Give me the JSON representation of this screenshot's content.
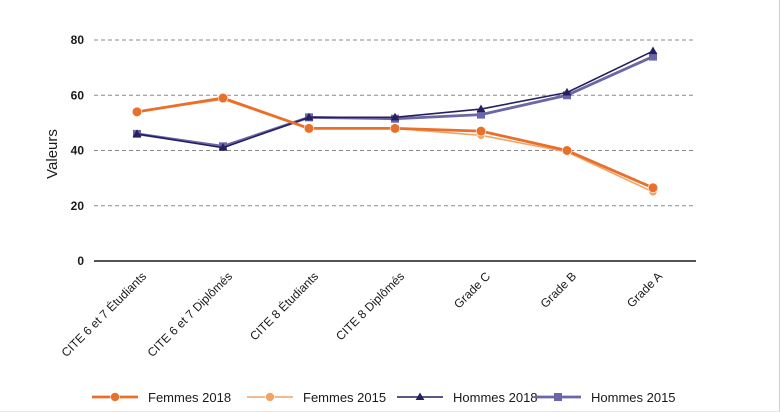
{
  "chart_data": {
    "type": "line",
    "title": "",
    "xlabel": "",
    "ylabel": "Valeurs",
    "ylim": [
      0,
      80
    ],
    "yticks": [
      0,
      20,
      40,
      60,
      80
    ],
    "grid": "horizontal-dashed",
    "legend_position": "bottom",
    "categories": [
      "CITE 6 et 7 Étudiants",
      "CITE 6 et 7 Diplômés",
      "CITE 8 Étudiants",
      "CITE 8 Diplômés",
      "Grade C",
      "Grade B",
      "Grade A"
    ],
    "series": [
      {
        "name": "Femmes 2018",
        "values": [
          54,
          59,
          48,
          48,
          47,
          40,
          26.5
        ],
        "color": "#e8702a",
        "marker": "circle",
        "weight": "thick"
      },
      {
        "name": "Femmes 2015",
        "values": [
          54,
          58.5,
          48,
          48,
          45.5,
          39.5,
          25
        ],
        "color": "#f2a466",
        "marker": "circle",
        "weight": "thin"
      },
      {
        "name": "Hommes 2018",
        "values": [
          46,
          41,
          52,
          52,
          55,
          61,
          76
        ],
        "color": "#25215e",
        "marker": "triangle",
        "weight": "thin"
      },
      {
        "name": "Hommes 2015",
        "values": [
          46,
          41.5,
          52,
          51.5,
          53,
          60,
          74
        ],
        "color": "#6a66a8",
        "marker": "square",
        "weight": "thick"
      }
    ]
  }
}
